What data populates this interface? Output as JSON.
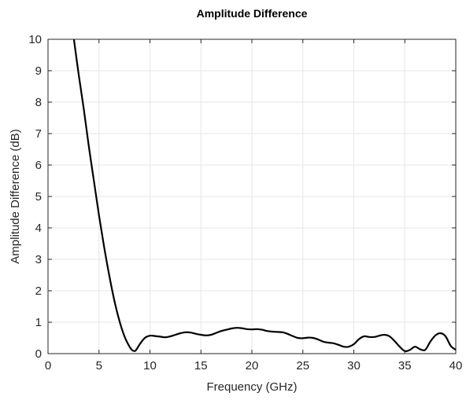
{
  "chart_data": {
    "type": "line",
    "title": "Amplitude Difference",
    "xlabel": "Frequency (GHz)",
    "ylabel": "Amplitude Difference (dB)",
    "xlim": [
      0,
      40
    ],
    "ylim": [
      0,
      10
    ],
    "xticks": [
      "0",
      "5",
      "10",
      "15",
      "20",
      "25",
      "30",
      "35",
      "40"
    ],
    "yticks": [
      "0",
      "1",
      "2",
      "3",
      "4",
      "5",
      "6",
      "7",
      "8",
      "9",
      "10"
    ],
    "grid": true,
    "legend": "none",
    "colors": {
      "line": "#000000",
      "grid": "#e6e6e6",
      "axes": "#262626"
    },
    "series": [
      {
        "x": [
          2.5,
          3,
          3.5,
          4,
          4.5,
          5,
          5.5,
          6,
          6.5,
          7,
          7.5,
          8,
          8.3,
          8.6,
          9,
          9.5,
          10,
          10.5,
          11,
          11.5,
          12,
          12.5,
          13,
          13.5,
          14,
          14.5,
          15,
          15.5,
          16,
          16.5,
          17,
          17.5,
          18,
          18.5,
          19,
          19.5,
          20,
          20.5,
          21,
          21.5,
          22,
          22.5,
          23,
          23.5,
          24,
          24.5,
          25,
          25.5,
          26,
          26.5,
          27,
          27.5,
          28,
          28.5,
          29,
          29.5,
          30,
          30.5,
          31,
          31.5,
          32,
          32.5,
          33,
          33.5,
          34,
          34.5,
          35,
          35.5,
          36,
          36.5,
          37,
          37.5,
          38,
          38.5,
          39,
          39.5,
          40
        ],
        "y": [
          10.1,
          8.9,
          7.8,
          6.6,
          5.5,
          4.4,
          3.4,
          2.5,
          1.7,
          1.05,
          0.55,
          0.22,
          0.1,
          0.1,
          0.3,
          0.5,
          0.57,
          0.56,
          0.54,
          0.52,
          0.55,
          0.6,
          0.65,
          0.68,
          0.67,
          0.63,
          0.6,
          0.58,
          0.6,
          0.66,
          0.72,
          0.76,
          0.8,
          0.82,
          0.81,
          0.78,
          0.77,
          0.78,
          0.76,
          0.72,
          0.7,
          0.69,
          0.68,
          0.63,
          0.56,
          0.5,
          0.49,
          0.51,
          0.5,
          0.45,
          0.38,
          0.35,
          0.33,
          0.28,
          0.22,
          0.22,
          0.3,
          0.46,
          0.55,
          0.53,
          0.53,
          0.57,
          0.6,
          0.55,
          0.4,
          0.22,
          0.08,
          0.12,
          0.22,
          0.14,
          0.12,
          0.38,
          0.58,
          0.65,
          0.55,
          0.25,
          0.12
        ]
      }
    ]
  }
}
